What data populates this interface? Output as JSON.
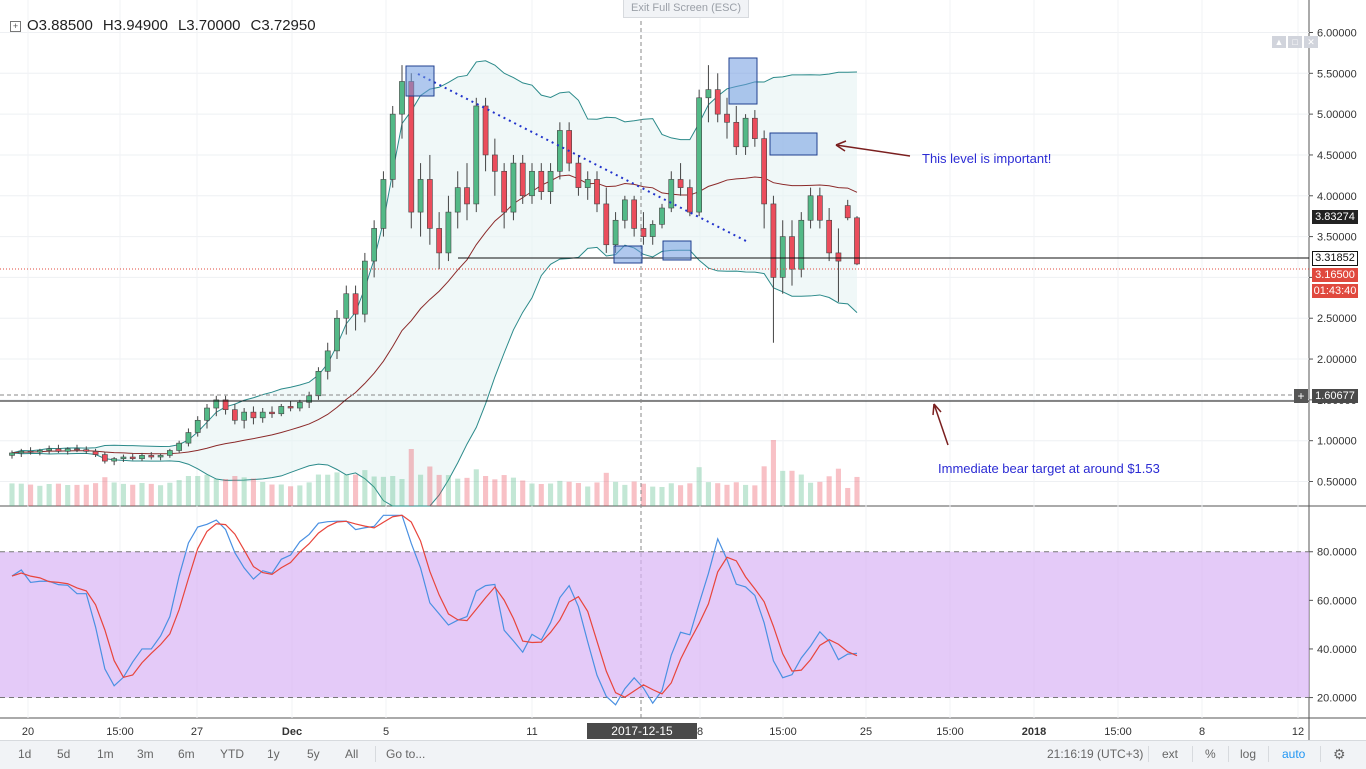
{
  "ohlc": {
    "open": "O3.88500",
    "high": "H3.94900",
    "low": "L3.70000",
    "close": "C3.72950"
  },
  "exit_fullscreen": "Exit Full Screen (ESC)",
  "annotations": {
    "level": "This level is important!",
    "target": "Immediate bear target at around $1.53"
  },
  "price_tags": {
    "bb_upper": "3.83274",
    "support": "3.31852",
    "last": "3.16500",
    "countdown": "01:43:40",
    "crosshair": "1.60677"
  },
  "crosshair_time": "2017-12-15 19:00:00",
  "price_axis_labels": [
    "6.00000",
    "5.50000",
    "5.00000",
    "4.50000",
    "4.00000",
    "3.50000",
    "3.00000",
    "2.50000",
    "2.00000",
    "1.50000",
    "1.00000",
    "0.50000"
  ],
  "stoch_axis_labels": [
    "80.0000",
    "60.0000",
    "40.0000",
    "20.0000"
  ],
  "time_axis_labels": [
    "20",
    "15:00",
    "27",
    "Dec",
    "5",
    "11",
    "8",
    "15:00",
    "25",
    "15:00",
    "2018",
    "15:00",
    "8",
    "12"
  ],
  "bottom_bar": {
    "ranges": [
      "1d",
      "5d",
      "1m",
      "3m",
      "6m",
      "YTD",
      "1y",
      "5y",
      "All"
    ],
    "goto": "Go to...",
    "clock": "21:16:19 (UTC+3)",
    "ext": "ext",
    "percent": "%",
    "log": "log",
    "auto": "auto"
  },
  "colors": {
    "up": "#53b987",
    "down": "#eb4d5c",
    "bb": "#2b8a8a",
    "ma": "#8b2a2a",
    "volume_ma": "#f0952f",
    "stoch_k": "#4a90e2",
    "stoch_d": "#e8453c",
    "stoch_band": "#d9b3f5",
    "annotation_text": "#2b2bd4",
    "arrow": "#7a1f1f"
  },
  "chart_data": {
    "type": "candlestick",
    "interval": "4h",
    "price_axis": {
      "range": [
        0.2,
        6.3
      ]
    },
    "stochastic_axis": {
      "range": [
        12,
        98
      ],
      "bands": [
        20,
        80
      ]
    },
    "x_positions_note": "",
    "candles": [
      {
        "o": 0.82,
        "h": 0.88,
        "l": 0.78,
        "c": 0.85
      },
      {
        "o": 0.85,
        "h": 0.9,
        "l": 0.8,
        "c": 0.87
      },
      {
        "o": 0.87,
        "h": 0.92,
        "l": 0.83,
        "c": 0.86
      },
      {
        "o": 0.86,
        "h": 0.9,
        "l": 0.82,
        "c": 0.88
      },
      {
        "o": 0.88,
        "h": 0.94,
        "l": 0.84,
        "c": 0.9
      },
      {
        "o": 0.9,
        "h": 0.95,
        "l": 0.85,
        "c": 0.87
      },
      {
        "o": 0.87,
        "h": 0.92,
        "l": 0.83,
        "c": 0.9
      },
      {
        "o": 0.9,
        "h": 0.95,
        "l": 0.86,
        "c": 0.89
      },
      {
        "o": 0.89,
        "h": 0.93,
        "l": 0.84,
        "c": 0.87
      },
      {
        "o": 0.87,
        "h": 0.9,
        "l": 0.8,
        "c": 0.83
      },
      {
        "o": 0.83,
        "h": 0.86,
        "l": 0.72,
        "c": 0.75
      },
      {
        "o": 0.75,
        "h": 0.8,
        "l": 0.7,
        "c": 0.78
      },
      {
        "o": 0.78,
        "h": 0.83,
        "l": 0.74,
        "c": 0.8
      },
      {
        "o": 0.8,
        "h": 0.84,
        "l": 0.76,
        "c": 0.78
      },
      {
        "o": 0.78,
        "h": 0.85,
        "l": 0.75,
        "c": 0.82
      },
      {
        "o": 0.82,
        "h": 0.86,
        "l": 0.77,
        "c": 0.8
      },
      {
        "o": 0.8,
        "h": 0.84,
        "l": 0.76,
        "c": 0.82
      },
      {
        "o": 0.82,
        "h": 0.9,
        "l": 0.79,
        "c": 0.88
      },
      {
        "o": 0.88,
        "h": 1.0,
        "l": 0.85,
        "c": 0.97
      },
      {
        "o": 0.97,
        "h": 1.15,
        "l": 0.93,
        "c": 1.1
      },
      {
        "o": 1.1,
        "h": 1.3,
        "l": 1.05,
        "c": 1.25
      },
      {
        "o": 1.25,
        "h": 1.45,
        "l": 1.15,
        "c": 1.4
      },
      {
        "o": 1.4,
        "h": 1.55,
        "l": 1.3,
        "c": 1.5
      },
      {
        "o": 1.5,
        "h": 1.55,
        "l": 1.32,
        "c": 1.38
      },
      {
        "o": 1.38,
        "h": 1.45,
        "l": 1.2,
        "c": 1.25
      },
      {
        "o": 1.25,
        "h": 1.4,
        "l": 1.15,
        "c": 1.35
      },
      {
        "o": 1.35,
        "h": 1.42,
        "l": 1.2,
        "c": 1.28
      },
      {
        "o": 1.28,
        "h": 1.4,
        "l": 1.22,
        "c": 1.35
      },
      {
        "o": 1.35,
        "h": 1.42,
        "l": 1.28,
        "c": 1.33
      },
      {
        "o": 1.33,
        "h": 1.45,
        "l": 1.3,
        "c": 1.42
      },
      {
        "o": 1.42,
        "h": 1.48,
        "l": 1.36,
        "c": 1.4
      },
      {
        "o": 1.4,
        "h": 1.5,
        "l": 1.36,
        "c": 1.47
      },
      {
        "o": 1.47,
        "h": 1.6,
        "l": 1.4,
        "c": 1.55
      },
      {
        "o": 1.55,
        "h": 1.9,
        "l": 1.5,
        "c": 1.85
      },
      {
        "o": 1.85,
        "h": 2.2,
        "l": 1.75,
        "c": 2.1
      },
      {
        "o": 2.1,
        "h": 2.6,
        "l": 2.0,
        "c": 2.5
      },
      {
        "o": 2.5,
        "h": 2.9,
        "l": 2.3,
        "c": 2.8
      },
      {
        "o": 2.8,
        "h": 2.9,
        "l": 2.35,
        "c": 2.55
      },
      {
        "o": 2.55,
        "h": 3.3,
        "l": 2.45,
        "c": 3.2
      },
      {
        "o": 3.2,
        "h": 3.7,
        "l": 3.0,
        "c": 3.6
      },
      {
        "o": 3.6,
        "h": 4.3,
        "l": 3.5,
        "c": 4.2
      },
      {
        "o": 4.2,
        "h": 5.1,
        "l": 4.1,
        "c": 5.0
      },
      {
        "o": 5.0,
        "h": 5.6,
        "l": 4.7,
        "c": 5.4
      },
      {
        "o": 5.4,
        "h": 5.5,
        "l": 3.6,
        "c": 3.8
      },
      {
        "o": 3.8,
        "h": 4.4,
        "l": 3.5,
        "c": 4.2
      },
      {
        "o": 4.2,
        "h": 4.5,
        "l": 3.4,
        "c": 3.6
      },
      {
        "o": 3.6,
        "h": 3.8,
        "l": 3.1,
        "c": 3.3
      },
      {
        "o": 3.3,
        "h": 4.0,
        "l": 3.2,
        "c": 3.8
      },
      {
        "o": 3.8,
        "h": 4.3,
        "l": 3.6,
        "c": 4.1
      },
      {
        "o": 4.1,
        "h": 4.4,
        "l": 3.7,
        "c": 3.9
      },
      {
        "o": 3.9,
        "h": 5.2,
        "l": 3.8,
        "c": 5.1
      },
      {
        "o": 5.1,
        "h": 5.2,
        "l": 4.3,
        "c": 4.5
      },
      {
        "o": 4.5,
        "h": 4.7,
        "l": 4.0,
        "c": 4.3
      },
      {
        "o": 4.3,
        "h": 4.4,
        "l": 3.6,
        "c": 3.8
      },
      {
        "o": 3.8,
        "h": 4.5,
        "l": 3.7,
        "c": 4.4
      },
      {
        "o": 4.4,
        "h": 4.5,
        "l": 3.9,
        "c": 4.0
      },
      {
        "o": 4.0,
        "h": 4.4,
        "l": 3.9,
        "c": 4.3
      },
      {
        "o": 4.3,
        "h": 4.4,
        "l": 3.95,
        "c": 4.05
      },
      {
        "o": 4.05,
        "h": 4.4,
        "l": 3.9,
        "c": 4.3
      },
      {
        "o": 4.3,
        "h": 4.9,
        "l": 4.2,
        "c": 4.8
      },
      {
        "o": 4.8,
        "h": 4.9,
        "l": 4.3,
        "c": 4.4
      },
      {
        "o": 4.4,
        "h": 4.5,
        "l": 4.0,
        "c": 4.1
      },
      {
        "o": 4.1,
        "h": 4.3,
        "l": 3.95,
        "c": 4.2
      },
      {
        "o": 4.2,
        "h": 4.3,
        "l": 3.8,
        "c": 3.9
      },
      {
        "o": 3.9,
        "h": 4.1,
        "l": 3.3,
        "c": 3.4
      },
      {
        "o": 3.4,
        "h": 3.8,
        "l": 3.3,
        "c": 3.7
      },
      {
        "o": 3.7,
        "h": 4.0,
        "l": 3.6,
        "c": 3.95
      },
      {
        "o": 3.95,
        "h": 4.0,
        "l": 3.5,
        "c": 3.6
      },
      {
        "o": 3.6,
        "h": 3.8,
        "l": 3.4,
        "c": 3.5
      },
      {
        "o": 3.5,
        "h": 3.7,
        "l": 3.4,
        "c": 3.65
      },
      {
        "o": 3.65,
        "h": 3.9,
        "l": 3.6,
        "c": 3.85
      },
      {
        "o": 3.85,
        "h": 4.3,
        "l": 3.8,
        "c": 4.2
      },
      {
        "o": 4.2,
        "h": 4.4,
        "l": 4.0,
        "c": 4.1
      },
      {
        "o": 4.1,
        "h": 4.2,
        "l": 3.75,
        "c": 3.8
      },
      {
        "o": 3.8,
        "h": 5.3,
        "l": 3.75,
        "c": 5.2
      },
      {
        "o": 5.2,
        "h": 5.6,
        "l": 4.9,
        "c": 5.3
      },
      {
        "o": 5.3,
        "h": 5.5,
        "l": 4.9,
        "c": 5.0
      },
      {
        "o": 5.0,
        "h": 5.2,
        "l": 4.7,
        "c": 4.9
      },
      {
        "o": 4.9,
        "h": 5.1,
        "l": 4.5,
        "c": 4.6
      },
      {
        "o": 4.6,
        "h": 5.0,
        "l": 4.5,
        "c": 4.95
      },
      {
        "o": 4.95,
        "h": 5.05,
        "l": 4.6,
        "c": 4.7
      },
      {
        "o": 4.7,
        "h": 4.8,
        "l": 3.6,
        "c": 3.9
      },
      {
        "o": 3.9,
        "h": 4.0,
        "l": 2.2,
        "c": 3.0
      },
      {
        "o": 3.0,
        "h": 3.7,
        "l": 2.8,
        "c": 3.5
      },
      {
        "o": 3.5,
        "h": 3.7,
        "l": 2.9,
        "c": 3.1
      },
      {
        "o": 3.1,
        "h": 3.8,
        "l": 3.0,
        "c": 3.7
      },
      {
        "o": 3.7,
        "h": 4.1,
        "l": 3.6,
        "c": 4.0
      },
      {
        "o": 4.0,
        "h": 4.1,
        "l": 3.6,
        "c": 3.7
      },
      {
        "o": 3.7,
        "h": 3.85,
        "l": 3.2,
        "c": 3.3
      },
      {
        "o": 3.3,
        "h": 3.6,
        "l": 2.7,
        "c": 3.2
      },
      {
        "o": 3.88,
        "h": 3.95,
        "l": 3.7,
        "c": 3.73
      },
      {
        "o": 3.73,
        "h": 3.75,
        "l": 3.15,
        "c": 3.165
      }
    ]
  }
}
